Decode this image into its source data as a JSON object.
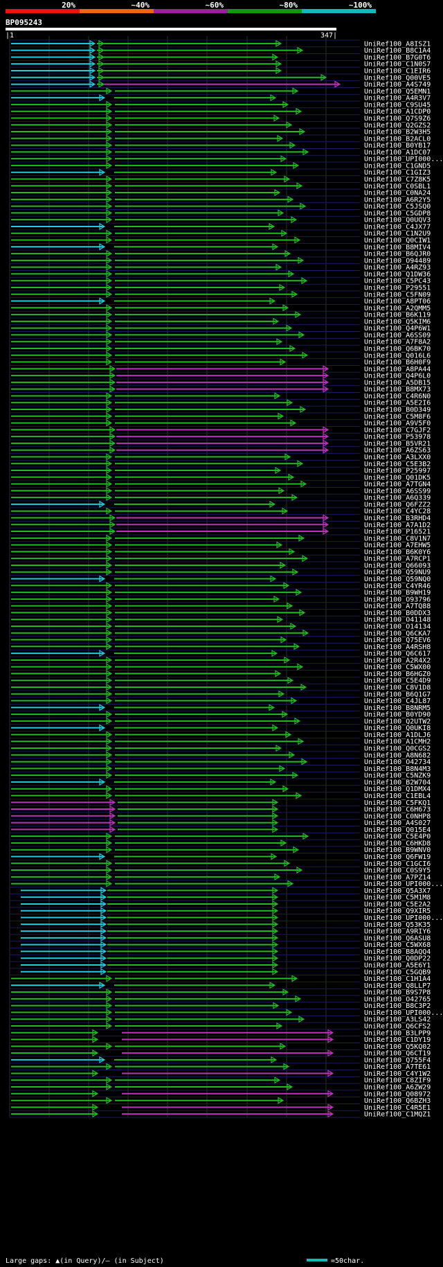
{
  "chart_data": {
    "type": "alignment-overview",
    "title": "BP095243",
    "query_length": 347,
    "ruler_start_label": "|1",
    "ruler_end_label": "347|",
    "legend_bins": [
      {
        "label": "20%",
        "color": "#ee1111"
      },
      {
        "label": "~40%",
        "color": "#ee6611"
      },
      {
        "label": "~60%",
        "color": "#992299"
      },
      {
        "label": "~80%",
        "color": "#119911"
      },
      {
        "label": "~100%",
        "color": "#11bbbb"
      }
    ],
    "footer": {
      "gaps_label": "Large gaps: ▲(in Query)/— (in Subject)",
      "scale_label": "=50char."
    },
    "hits": [
      "UniRef100_A8ISZ1",
      "UniRef100_B8C1A4",
      "UniRef100_B7G0T6",
      "UniRef100_C1N0S7",
      "UniRef100_C1EIR6",
      "UniRef100_Q00VE5",
      "UniRef100_A4S749",
      "UniRef100_Q5EMN1",
      "UniRef100_A4R3V7",
      "UniRef100_C9SU45",
      "UniRef100_A1CDP0",
      "UniRef100_Q7S9Z6",
      "UniRef100_Q2GZS2",
      "UniRef100_B2W3H5",
      "UniRef100_B2ACL0",
      "UniRef100_B0YB17",
      "UniRef100_A1DC07",
      "UniRef100_UPI000...",
      "UniRef100_C1GND5",
      "UniRef100_C1GIZ3",
      "UniRef100_C7Z8K5",
      "UniRef100_C0SBL1",
      "UniRef100_C0NA24",
      "UniRef100_A6R2Y5",
      "UniRef100_C5JSQ0",
      "UniRef100_C5GDP8",
      "UniRef100_Q0UQV3",
      "UniRef100_C4JX77",
      "UniRef100_C1N2U9",
      "UniRef100_Q0CIW1",
      "UniRef100_B8MIV4",
      "UniRef100_B6QJR0",
      "UniRef100_O94489",
      "UniRef100_A4RZ93",
      "UniRef100_Q1DW36",
      "UniRef100_C5PC43",
      "UniRef100_P29551",
      "UniRef100_C5FN09",
      "UniRef100_A8PT06",
      "UniRef100_A2QMM5",
      "UniRef100_B6K119",
      "UniRef100_Q5KIM6",
      "UniRef100_Q4P6W1",
      "UniRef100_A6SS09",
      "UniRef100_A7F8A2",
      "UniRef100_Q6BK70",
      "UniRef100_Q016L6",
      "UniRef100_B6H0F9",
      "UniRef100_A8PA44",
      "UniRef100_Q4P6L0",
      "UniRef100_A5DB15",
      "UniRef100_B8MX73",
      "UniRef100_C4R6N0",
      "UniRef100_A5E2I6",
      "UniRef100_B0D349",
      "UniRef100_C5M8F6",
      "UniRef100_A9V5F0",
      "UniRef100_C7GJF2",
      "UniRef100_P53978",
      "UniRef100_B5VR21",
      "UniRef100_A6ZS63",
      "UniRef100_A3LXX0",
      "UniRef100_C5E3B2",
      "UniRef100_P25997",
      "UniRef100_Q01DK5",
      "UniRef100_A7TGN4",
      "UniRef100_A6SS99",
      "UniRef100_A6Q339",
      "UniRef100_Q6FZZ2",
      "UniRef100_C4YC28",
      "UniRef100_B3RHD4",
      "UniRef100_A7A1D2",
      "UniRef100_P16521",
      "UniRef100_C8V1N7",
      "UniRef100_A7EHW5",
      "UniRef100_B6K0Y6",
      "UniRef100_A7RCP1",
      "UniRef100_Q66093",
      "UniRef100_Q59NU9",
      "UniRef100_Q59NQ0",
      "UniRef100_C4YR46",
      "UniRef100_B9WH19",
      "UniRef100_O93796",
      "UniRef100_A7TQ88",
      "UniRef100_B0DDX3",
      "UniRef100_O41148",
      "UniRef100_O14134",
      "UniRef100_Q6CKA7",
      "UniRef100_Q75EV6",
      "UniRef100_A4RSH8",
      "UniRef100_Q6C617",
      "UniRef100_A2R4X2",
      "UniRef100_C5WX00",
      "UniRef100_B6HGZ0",
      "UniRef100_C5E4D9",
      "UniRef100_C8V1D8",
      "UniRef100_B6Q1G7",
      "UniRef100_C4JL87",
      "UniRef100_B8NRM5",
      "UniRef100_B0YD90",
      "UniRef100_Q2UTW2",
      "UniRef100_Q0UKI8",
      "UniRef100_A1DLJ6",
      "UniRef100_A1CMH2",
      "UniRef100_Q0CGS2",
      "UniRef100_A8N682",
      "UniRef100_O42734",
      "UniRef100_B8N4M3",
      "UniRef100_C5NZK9",
      "UniRef100_B2W704",
      "UniRef100_Q1DMX4",
      "UniRef100_C1EBL4",
      "UniRef100_C5FKQ1",
      "UniRef100_C6H673",
      "UniRef100_C0NHP8",
      "UniRef100_A4S027",
      "UniRef100_Q015E4",
      "UniRef100_C5E4P0",
      "UniRef100_C6HKD8",
      "UniRef100_B9WNV0",
      "UniRef100_Q6FW19",
      "UniRef100_C1GCI6",
      "UniRef100_C0S9Y5",
      "UniRef100_A7PZ14",
      "UniRef100_UPI000...",
      "UniRef100_Q5A3X7",
      "UniRef100_C5M1M8",
      "UniRef100_C5E2A2",
      "UniRef100_Q9XIR5",
      "UniRef100_UPI000...",
      "UniRef100_Q53K35",
      "UniRef100_A9RIY6",
      "UniRef100_Q6ASU8",
      "UniRef100_C5WX68",
      "UniRef100_B8AQQ4",
      "UniRef100_Q0DP22",
      "UniRef100_A5E6Y1",
      "UniRef100_C5GQB9",
      "UniRef100_C1H1A4",
      "UniRef100_Q8LLP7",
      "UniRef100_B9S7P8",
      "UniRef100_O42765",
      "UniRef100_B8C3P2",
      "UniRef100_UPI000...",
      "UniRef100_A3LS42",
      "UniRef100_Q6CFS2",
      "UniRef100_B3LPP9",
      "UniRef100_C1DY19",
      "UniRef100_Q5KQ02",
      "UniRef100_Q6CT19",
      "UniRef100_Q755F4",
      "UniRef100_A7TE61",
      "UniRef100_C4Y1W2",
      "UniRef100_C8ZIF9",
      "UniRef100_A6ZW29",
      "UniRef100_Q08972",
      "UniRef100_Q6BZH3",
      "UniRef100_C4R5E1",
      "UniRef100_C1MQZ1"
    ]
  }
}
